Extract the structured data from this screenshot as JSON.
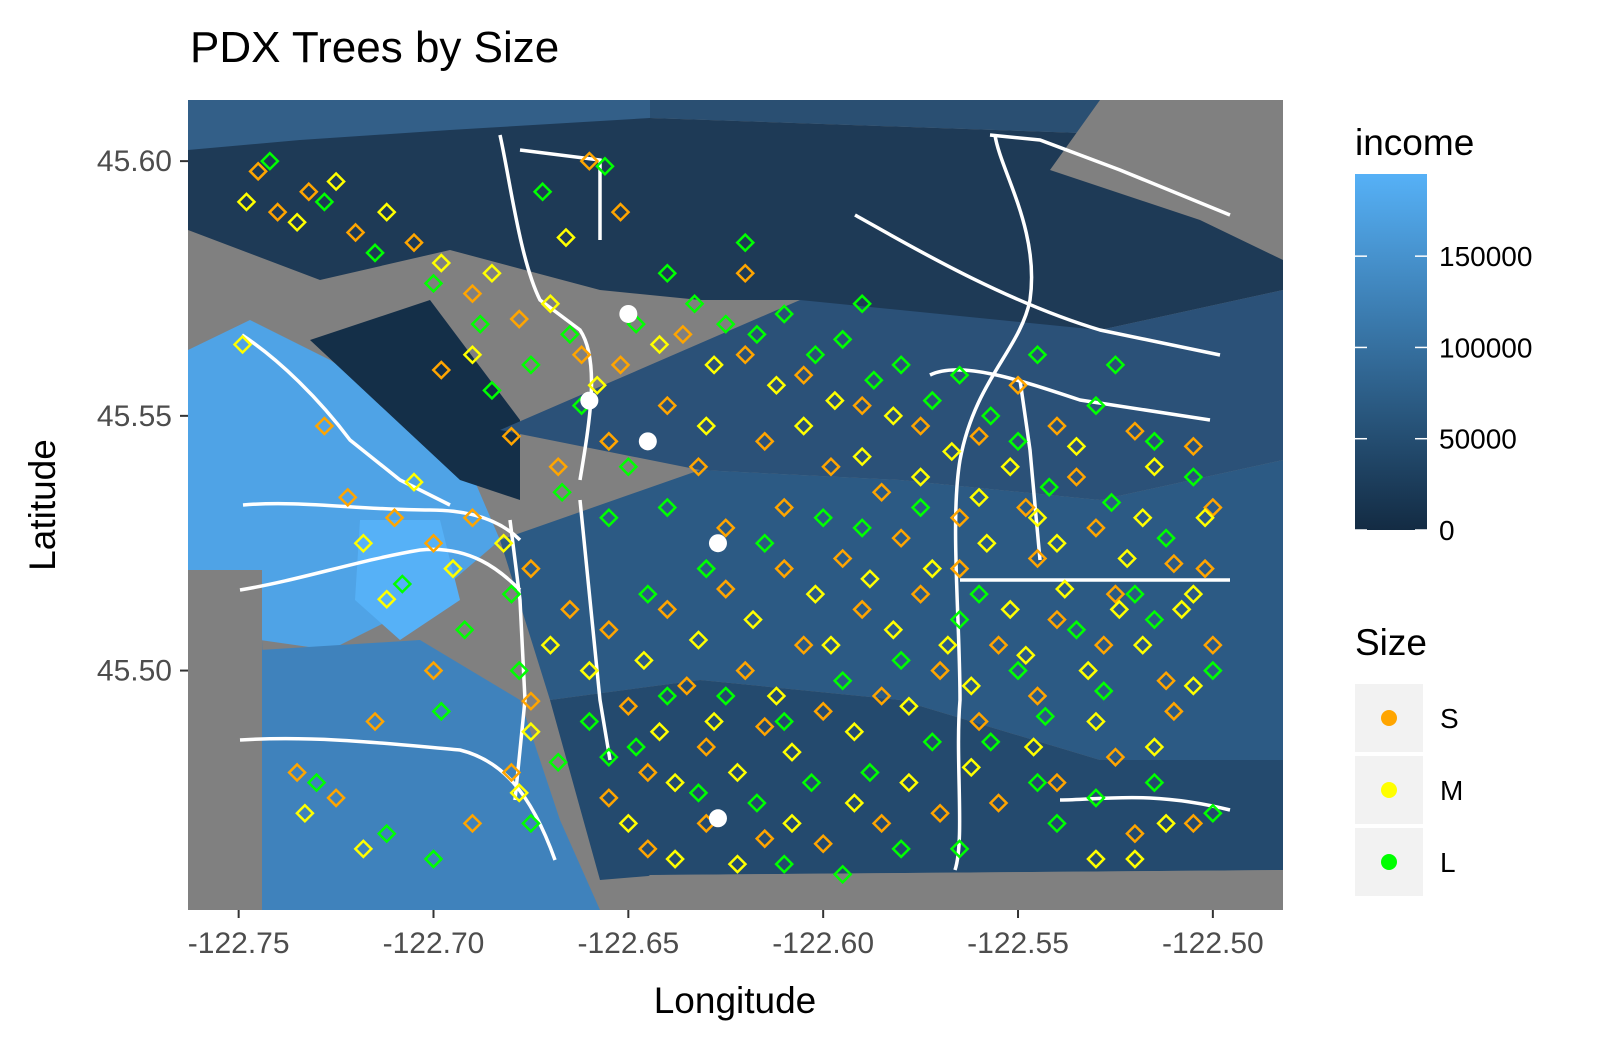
{
  "chart_data": {
    "type": "scatter",
    "title": "PDX Trees by Size",
    "xlabel": "Longitude",
    "ylabel": "Latitude",
    "xlim": [
      -122.763,
      -122.482
    ],
    "ylim": [
      45.453,
      45.612
    ],
    "xticks": [
      -122.75,
      -122.7,
      -122.65,
      -122.6,
      -122.55,
      -122.5
    ],
    "xtick_labels": [
      "-122.75",
      "-122.70",
      "-122.65",
      "-122.60",
      "-122.55",
      "-122.50"
    ],
    "yticks": [
      45.5,
      45.55,
      45.6
    ],
    "ytick_labels": [
      "45.50",
      "45.55",
      "45.60"
    ],
    "fill_scale": {
      "title": "income",
      "breaks": [
        0,
        50000,
        100000,
        150000
      ],
      "labels": [
        "0",
        "50000",
        "100000",
        "150000"
      ],
      "range": [
        0,
        195000
      ],
      "low_color": "#132B43",
      "high_color": "#56B1F7"
    },
    "shape_legend": {
      "title": "Size",
      "entries": [
        {
          "label": "S",
          "color": "#FFA500"
        },
        {
          "label": "M",
          "color": "#FFFF00"
        },
        {
          "label": "L",
          "color": "#00FF00"
        }
      ]
    },
    "marker": "open-diamond",
    "grid": false,
    "background_color": "#808080",
    "legend_position": "right",
    "highlight_points_color": "#FFFFFF",
    "highlight_points": [
      {
        "x": -122.65,
        "y": 45.57
      },
      {
        "x": -122.66,
        "y": 45.553
      },
      {
        "x": -122.645,
        "y": 45.545
      },
      {
        "x": -122.627,
        "y": 45.525
      },
      {
        "x": -122.627,
        "y": 45.471
      }
    ],
    "series": [
      {
        "name": "S",
        "color": "#FFA500",
        "points": [
          [
            -122.745,
            45.598
          ],
          [
            -122.74,
            45.59
          ],
          [
            -122.732,
            45.594
          ],
          [
            -122.72,
            45.586
          ],
          [
            -122.705,
            45.584
          ],
          [
            -122.69,
            45.574
          ],
          [
            -122.678,
            45.569
          ],
          [
            -122.662,
            45.562
          ],
          [
            -122.652,
            45.56
          ],
          [
            -122.636,
            45.566
          ],
          [
            -122.62,
            45.562
          ],
          [
            -122.605,
            45.558
          ],
          [
            -122.59,
            45.552
          ],
          [
            -122.575,
            45.548
          ],
          [
            -122.56,
            45.546
          ],
          [
            -122.54,
            45.548
          ],
          [
            -122.52,
            45.547
          ],
          [
            -122.505,
            45.544
          ],
          [
            -122.5,
            45.532
          ],
          [
            -122.51,
            45.521
          ],
          [
            -122.525,
            45.515
          ],
          [
            -122.54,
            45.51
          ],
          [
            -122.555,
            45.505
          ],
          [
            -122.57,
            45.5
          ],
          [
            -122.585,
            45.495
          ],
          [
            -122.6,
            45.492
          ],
          [
            -122.615,
            45.489
          ],
          [
            -122.63,
            45.485
          ],
          [
            -122.645,
            45.48
          ],
          [
            -122.655,
            45.475
          ],
          [
            -122.645,
            45.465
          ],
          [
            -122.63,
            45.47
          ],
          [
            -122.615,
            45.467
          ],
          [
            -122.6,
            45.466
          ],
          [
            -122.585,
            45.47
          ],
          [
            -122.57,
            45.472
          ],
          [
            -122.555,
            45.474
          ],
          [
            -122.54,
            45.478
          ],
          [
            -122.525,
            45.483
          ],
          [
            -122.51,
            45.492
          ],
          [
            -122.5,
            45.505
          ],
          [
            -122.502,
            45.52
          ],
          [
            -122.53,
            45.528
          ],
          [
            -122.548,
            45.532
          ],
          [
            -122.565,
            45.53
          ],
          [
            -122.58,
            45.526
          ],
          [
            -122.595,
            45.522
          ],
          [
            -122.61,
            45.52
          ],
          [
            -122.625,
            45.516
          ],
          [
            -122.64,
            45.512
          ],
          [
            -122.655,
            45.508
          ],
          [
            -122.665,
            45.512
          ],
          [
            -122.675,
            45.52
          ],
          [
            -122.69,
            45.53
          ],
          [
            -122.7,
            45.525
          ],
          [
            -122.71,
            45.53
          ],
          [
            -122.722,
            45.534
          ],
          [
            -122.728,
            45.548
          ],
          [
            -122.7,
            45.5
          ],
          [
            -122.715,
            45.49
          ],
          [
            -122.735,
            45.48
          ],
          [
            -122.725,
            45.475
          ],
          [
            -122.69,
            45.47
          ],
          [
            -122.68,
            45.48
          ],
          [
            -122.675,
            45.494
          ],
          [
            -122.652,
            45.59
          ],
          [
            -122.66,
            45.6
          ],
          [
            -122.698,
            45.559
          ],
          [
            -122.655,
            45.545
          ],
          [
            -122.632,
            45.54
          ],
          [
            -122.615,
            45.545
          ],
          [
            -122.598,
            45.54
          ],
          [
            -122.585,
            45.535
          ],
          [
            -122.565,
            45.52
          ],
          [
            -122.545,
            45.522
          ],
          [
            -122.528,
            45.505
          ],
          [
            -122.512,
            45.498
          ],
          [
            -122.52,
            45.468
          ],
          [
            -122.505,
            45.47
          ],
          [
            -122.59,
            45.512
          ],
          [
            -122.605,
            45.505
          ],
          [
            -122.62,
            45.5
          ],
          [
            -122.635,
            45.497
          ],
          [
            -122.65,
            45.493
          ],
          [
            -122.575,
            45.515
          ],
          [
            -122.56,
            45.49
          ],
          [
            -122.545,
            45.495
          ],
          [
            -122.535,
            45.538
          ],
          [
            -122.55,
            45.556
          ],
          [
            -122.62,
            45.578
          ],
          [
            -122.64,
            45.552
          ],
          [
            -122.668,
            45.54
          ],
          [
            -122.68,
            45.546
          ],
          [
            -122.61,
            45.532
          ],
          [
            -122.625,
            45.528
          ]
        ]
      },
      {
        "name": "M",
        "color": "#FFFF00",
        "points": [
          [
            -122.748,
            45.592
          ],
          [
            -122.735,
            45.588
          ],
          [
            -122.725,
            45.596
          ],
          [
            -122.712,
            45.59
          ],
          [
            -122.698,
            45.58
          ],
          [
            -122.685,
            45.578
          ],
          [
            -122.67,
            45.572
          ],
          [
            -122.658,
            45.556
          ],
          [
            -122.642,
            45.564
          ],
          [
            -122.628,
            45.56
          ],
          [
            -122.612,
            45.556
          ],
          [
            -122.597,
            45.553
          ],
          [
            -122.582,
            45.55
          ],
          [
            -122.567,
            45.543
          ],
          [
            -122.552,
            45.54
          ],
          [
            -122.535,
            45.544
          ],
          [
            -122.515,
            45.54
          ],
          [
            -122.502,
            45.53
          ],
          [
            -122.508,
            45.512
          ],
          [
            -122.518,
            45.505
          ],
          [
            -122.532,
            45.5
          ],
          [
            -122.548,
            45.503
          ],
          [
            -122.562,
            45.497
          ],
          [
            -122.578,
            45.493
          ],
          [
            -122.592,
            45.488
          ],
          [
            -122.608,
            45.484
          ],
          [
            -122.622,
            45.48
          ],
          [
            -122.638,
            45.478
          ],
          [
            -122.65,
            45.47
          ],
          [
            -122.638,
            45.463
          ],
          [
            -122.622,
            45.462
          ],
          [
            -122.608,
            45.47
          ],
          [
            -122.592,
            45.474
          ],
          [
            -122.578,
            45.478
          ],
          [
            -122.562,
            45.481
          ],
          [
            -122.546,
            45.485
          ],
          [
            -122.53,
            45.49
          ],
          [
            -122.515,
            45.485
          ],
          [
            -122.505,
            45.497
          ],
          [
            -122.522,
            45.522
          ],
          [
            -122.54,
            45.525
          ],
          [
            -122.558,
            45.525
          ],
          [
            -122.572,
            45.52
          ],
          [
            -122.588,
            45.518
          ],
          [
            -122.602,
            45.515
          ],
          [
            -122.618,
            45.51
          ],
          [
            -122.632,
            45.506
          ],
          [
            -122.646,
            45.502
          ],
          [
            -122.66,
            45.5
          ],
          [
            -122.67,
            45.505
          ],
          [
            -122.682,
            45.525
          ],
          [
            -122.695,
            45.52
          ],
          [
            -122.705,
            45.537
          ],
          [
            -122.718,
            45.525
          ],
          [
            -122.712,
            45.514
          ],
          [
            -122.733,
            45.472
          ],
          [
            -122.718,
            45.465
          ],
          [
            -122.675,
            45.488
          ],
          [
            -122.678,
            45.476
          ],
          [
            -122.749,
            45.564
          ],
          [
            -122.666,
            45.585
          ],
          [
            -122.69,
            45.562
          ],
          [
            -122.63,
            45.548
          ],
          [
            -122.605,
            45.548
          ],
          [
            -122.59,
            45.542
          ],
          [
            -122.575,
            45.538
          ],
          [
            -122.56,
            45.534
          ],
          [
            -122.545,
            45.53
          ],
          [
            -122.518,
            45.53
          ],
          [
            -122.505,
            45.515
          ],
          [
            -122.598,
            45.505
          ],
          [
            -122.612,
            45.495
          ],
          [
            -122.628,
            45.49
          ],
          [
            -122.642,
            45.488
          ],
          [
            -122.582,
            45.508
          ],
          [
            -122.568,
            45.505
          ],
          [
            -122.552,
            45.512
          ],
          [
            -122.538,
            45.516
          ],
          [
            -122.524,
            45.512
          ],
          [
            -122.512,
            45.47
          ],
          [
            -122.52,
            45.463
          ],
          [
            -122.53,
            45.463
          ]
        ]
      },
      {
        "name": "L",
        "color": "#00FF00",
        "points": [
          [
            -122.742,
            45.6
          ],
          [
            -122.728,
            45.592
          ],
          [
            -122.715,
            45.582
          ],
          [
            -122.7,
            45.576
          ],
          [
            -122.688,
            45.568
          ],
          [
            -122.675,
            45.56
          ],
          [
            -122.665,
            45.566
          ],
          [
            -122.648,
            45.568
          ],
          [
            -122.633,
            45.572
          ],
          [
            -122.617,
            45.566
          ],
          [
            -122.602,
            45.562
          ],
          [
            -122.587,
            45.557
          ],
          [
            -122.572,
            45.553
          ],
          [
            -122.557,
            45.55
          ],
          [
            -122.542,
            45.536
          ],
          [
            -122.526,
            45.533
          ],
          [
            -122.512,
            45.526
          ],
          [
            -122.5,
            45.5
          ],
          [
            -122.515,
            45.51
          ],
          [
            -122.528,
            45.496
          ],
          [
            -122.543,
            45.491
          ],
          [
            -122.557,
            45.486
          ],
          [
            -122.572,
            45.486
          ],
          [
            -122.588,
            45.48
          ],
          [
            -122.603,
            45.478
          ],
          [
            -122.617,
            45.474
          ],
          [
            -122.632,
            45.476
          ],
          [
            -122.648,
            45.485
          ],
          [
            -122.66,
            45.49
          ],
          [
            -122.668,
            45.482
          ],
          [
            -122.675,
            45.47
          ],
          [
            -122.7,
            45.463
          ],
          [
            -122.712,
            45.468
          ],
          [
            -122.73,
            45.478
          ],
          [
            -122.698,
            45.492
          ],
          [
            -122.708,
            45.517
          ],
          [
            -122.692,
            45.508
          ],
          [
            -122.678,
            45.5
          ],
          [
            -122.68,
            45.515
          ],
          [
            -122.667,
            45.535
          ],
          [
            -122.685,
            45.555
          ],
          [
            -122.656,
            45.599
          ],
          [
            -122.672,
            45.594
          ],
          [
            -122.64,
            45.578
          ],
          [
            -122.625,
            45.568
          ],
          [
            -122.61,
            45.57
          ],
          [
            -122.595,
            45.565
          ],
          [
            -122.58,
            45.56
          ],
          [
            -122.565,
            45.558
          ],
          [
            -122.55,
            45.545
          ],
          [
            -122.53,
            45.552
          ],
          [
            -122.515,
            45.545
          ],
          [
            -122.505,
            45.538
          ],
          [
            -122.52,
            45.515
          ],
          [
            -122.535,
            45.508
          ],
          [
            -122.55,
            45.5
          ],
          [
            -122.565,
            45.51
          ],
          [
            -122.58,
            45.502
          ],
          [
            -122.595,
            45.498
          ],
          [
            -122.61,
            45.49
          ],
          [
            -122.625,
            45.495
          ],
          [
            -122.64,
            45.495
          ],
          [
            -122.655,
            45.483
          ],
          [
            -122.6,
            45.53
          ],
          [
            -122.615,
            45.525
          ],
          [
            -122.63,
            45.52
          ],
          [
            -122.645,
            45.515
          ],
          [
            -122.575,
            45.532
          ],
          [
            -122.59,
            45.528
          ],
          [
            -122.56,
            45.515
          ],
          [
            -122.545,
            45.478
          ],
          [
            -122.53,
            45.475
          ],
          [
            -122.515,
            45.478
          ],
          [
            -122.5,
            45.472
          ],
          [
            -122.54,
            45.47
          ],
          [
            -122.565,
            45.465
          ],
          [
            -122.58,
            45.465
          ],
          [
            -122.595,
            45.46
          ],
          [
            -122.61,
            45.462
          ],
          [
            -122.525,
            45.56
          ],
          [
            -122.545,
            45.562
          ],
          [
            -122.59,
            45.572
          ],
          [
            -122.62,
            45.584
          ],
          [
            -122.655,
            45.53
          ],
          [
            -122.64,
            45.532
          ],
          [
            -122.662,
            45.552
          ],
          [
            -122.65,
            45.54
          ]
        ]
      }
    ]
  }
}
